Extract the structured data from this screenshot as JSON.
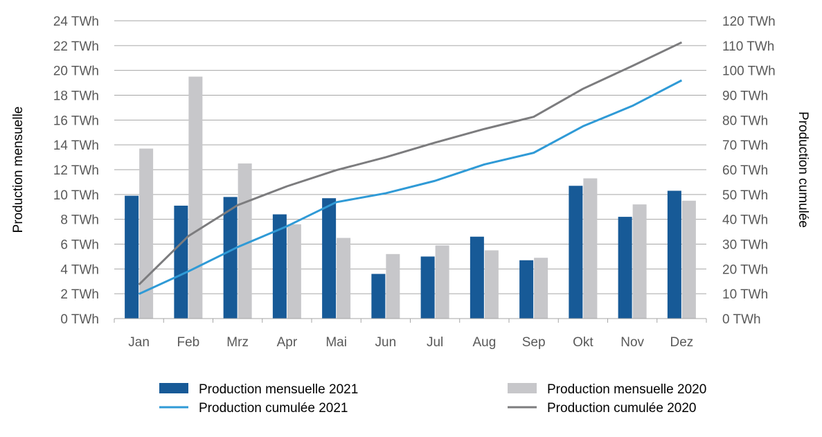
{
  "chart_data": {
    "type": "bar",
    "categories": [
      "Jan",
      "Feb",
      "Mrz",
      "Apr",
      "Mai",
      "Jun",
      "Jul",
      "Aug",
      "Sep",
      "Okt",
      "Nov",
      "Dez"
    ],
    "ylabel": "Production mensuelle",
    "y2label": "Production cumulée",
    "ylim": [
      0,
      24
    ],
    "y2lim": [
      0,
      120
    ],
    "yticks": [
      "0 TWh",
      "2 TWh",
      "4 TWh",
      "6 TWh",
      "8 TWh",
      "10 TWh",
      "12 TWh",
      "14 TWh",
      "16 TWh",
      "18 TWh",
      "20 TWh",
      "22 TWh",
      "24 TWh"
    ],
    "y2ticks": [
      "0 TWh",
      "10 TWh",
      "20 TWh",
      "30 TWh",
      "40 TWh",
      "50 TWh",
      "60 TWh",
      "70 TWh",
      "80 TWh",
      "90 TWh",
      "100 TWh",
      "110 TWh",
      "120 TWh"
    ],
    "grid": true,
    "legend_position": "bottom",
    "series": [
      {
        "name": "Production mensuelle 2021",
        "type": "bar",
        "axis": "left",
        "color": "#175a97",
        "values": [
          9.9,
          9.1,
          9.8,
          8.4,
          9.7,
          3.6,
          5.0,
          6.6,
          4.7,
          10.7,
          8.2,
          10.3
        ]
      },
      {
        "name": "Production mensuelle 2020",
        "type": "bar",
        "axis": "left",
        "color": "#c7c7ca",
        "values": [
          13.7,
          19.5,
          12.5,
          7.6,
          6.5,
          5.2,
          5.9,
          5.5,
          4.9,
          11.3,
          9.2,
          9.5
        ]
      },
      {
        "name": "Production cumulée 2021",
        "type": "line",
        "axis": "right",
        "color": "#2f9ad6",
        "values": [
          9.9,
          19.0,
          28.8,
          37.2,
          46.9,
          50.5,
          55.5,
          62.1,
          66.8,
          77.5,
          85.7,
          96.0
        ]
      },
      {
        "name": "Production cumulée 2020",
        "type": "line",
        "axis": "right",
        "color": "#7c7c7e",
        "values": [
          13.7,
          33.2,
          45.7,
          53.3,
          59.8,
          65.0,
          70.9,
          76.4,
          81.3,
          92.6,
          101.8,
          111.3
        ]
      }
    ]
  }
}
